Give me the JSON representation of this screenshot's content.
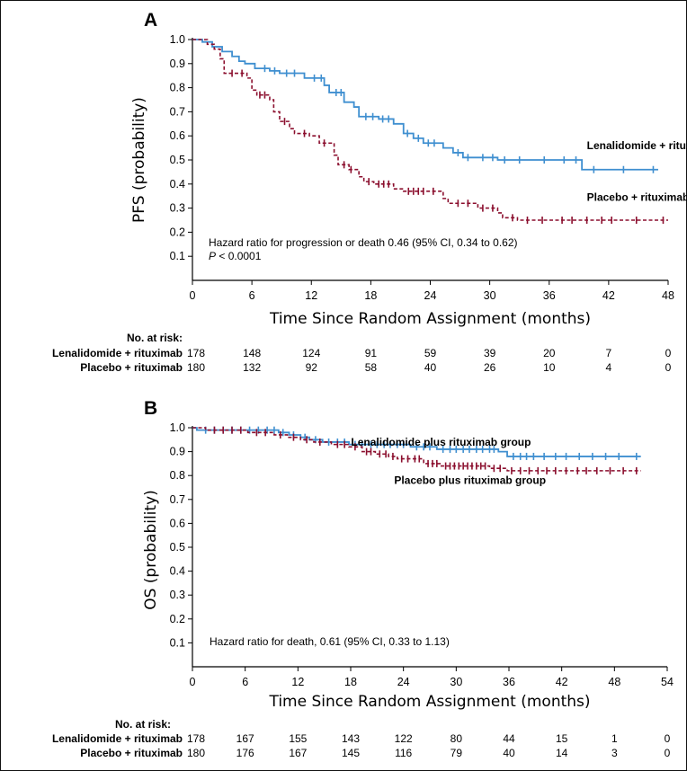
{
  "colors": {
    "lenalidomide": "#3f8fd0",
    "placebo": "#8b0f2e",
    "axis": "#000000"
  },
  "chart_data": [
    {
      "type": "line",
      "id": "panel-a",
      "panel_label": "A",
      "xlabel": "Time Since Random Assignment (months)",
      "ylabel": "PFS (probability)",
      "xlim": [
        0,
        48
      ],
      "ylim": [
        0,
        1.0
      ],
      "x_ticks": [
        0,
        6,
        12,
        18,
        24,
        30,
        36,
        42,
        48
      ],
      "x_tick_labels": [
        "0",
        "6",
        "12",
        "18",
        "24",
        "30",
        "36",
        "42",
        "48"
      ],
      "y_ticks": [
        0.1,
        0.2,
        0.3,
        0.4,
        0.5,
        0.6,
        0.7,
        0.8,
        0.9,
        1.0
      ],
      "y_tick_labels": [
        "0.1",
        "0.2",
        "0.3",
        "0.4",
        "0.5",
        "0.6",
        "0.7",
        "0.8",
        "0.9",
        "1.0"
      ],
      "grid": false,
      "annotation": {
        "line1": "Hazard ratio for progression or death 0.46 (95% CI, 0.34 to 0.62)",
        "line2_p": "P",
        "line2_rest": " < 0.0001"
      },
      "series": [
        {
          "name": "Lenalidomide + rituximab",
          "color_key": "lenalidomide",
          "style": "solid",
          "steps": [
            [
              0,
              1.0
            ],
            [
              1.0,
              0.99
            ],
            [
              2.0,
              0.97
            ],
            [
              3.0,
              0.95
            ],
            [
              4.0,
              0.93
            ],
            [
              4.7,
              0.91
            ],
            [
              5.3,
              0.9
            ],
            [
              6.3,
              0.88
            ],
            [
              7.8,
              0.87
            ],
            [
              8.8,
              0.86
            ],
            [
              11.3,
              0.84
            ],
            [
              13.3,
              0.81
            ],
            [
              13.8,
              0.78
            ],
            [
              15.3,
              0.74
            ],
            [
              16.3,
              0.72
            ],
            [
              16.8,
              0.68
            ],
            [
              18.8,
              0.67
            ],
            [
              20.3,
              0.65
            ],
            [
              21.3,
              0.61
            ],
            [
              22.3,
              0.59
            ],
            [
              23.3,
              0.57
            ],
            [
              25.3,
              0.55
            ],
            [
              26.3,
              0.53
            ],
            [
              27.3,
              0.51
            ],
            [
              30.8,
              0.5
            ],
            [
              39.3,
              0.46
            ],
            [
              47.0,
              0.46
            ]
          ],
          "censor": [
            7.3,
            8.3,
            9.5,
            10.3,
            12.3,
            13.0,
            14.5,
            15.0,
            17.5,
            18.2,
            19.2,
            19.8,
            21.7,
            22.8,
            23.8,
            24.4,
            26.8,
            27.8,
            29.3,
            30.3,
            31.5,
            33.0,
            35.5,
            37.5,
            38.7,
            40.5,
            43.5,
            46.5
          ]
        },
        {
          "name": "Placebo + rituximab",
          "color_key": "placebo",
          "style": "dashed",
          "steps": [
            [
              0,
              1.0
            ],
            [
              1.5,
              0.98
            ],
            [
              2.2,
              0.96
            ],
            [
              2.8,
              0.92
            ],
            [
              3.2,
              0.86
            ],
            [
              5.5,
              0.84
            ],
            [
              6.0,
              0.79
            ],
            [
              6.5,
              0.77
            ],
            [
              7.8,
              0.75
            ],
            [
              8.2,
              0.7
            ],
            [
              8.8,
              0.66
            ],
            [
              9.8,
              0.63
            ],
            [
              10.3,
              0.61
            ],
            [
              11.8,
              0.6
            ],
            [
              12.8,
              0.57
            ],
            [
              14.3,
              0.52
            ],
            [
              14.7,
              0.48
            ],
            [
              15.8,
              0.46
            ],
            [
              16.8,
              0.43
            ],
            [
              17.3,
              0.41
            ],
            [
              18.3,
              0.4
            ],
            [
              20.3,
              0.38
            ],
            [
              21.3,
              0.37
            ],
            [
              25.3,
              0.34
            ],
            [
              25.8,
              0.32
            ],
            [
              28.8,
              0.3
            ],
            [
              30.8,
              0.28
            ],
            [
              31.3,
              0.26
            ],
            [
              32.8,
              0.25
            ],
            [
              48.0,
              0.25
            ]
          ],
          "censor": [
            4.0,
            5.0,
            6.8,
            7.3,
            9.3,
            11.3,
            13.3,
            15.3,
            16.0,
            17.8,
            18.8,
            19.3,
            19.8,
            21.8,
            22.3,
            22.8,
            23.3,
            24.3,
            26.8,
            27.8,
            29.3,
            30.3,
            32.3,
            33.8,
            35.3,
            37.3,
            38.3,
            39.8,
            41.3,
            42.3,
            44.8,
            47.5
          ]
        }
      ],
      "series_labels": [
        {
          "text": "Lenalidomide + rituximab",
          "anchor_x": 39.8,
          "anchor_y": 0.545
        },
        {
          "text": "Placebo + rituximab",
          "anchor_x": 39.8,
          "anchor_y": 0.33
        }
      ],
      "risk_table": {
        "header": "No. at risk:",
        "rows": [
          {
            "label": "Lenalidomide + rituximab",
            "values": [
              "178",
              "148",
              "124",
              "91",
              "59",
              "39",
              "20",
              "7",
              "0"
            ]
          },
          {
            "label": "Placebo + rituximab",
            "values": [
              "180",
              "132",
              "92",
              "58",
              "40",
              "26",
              "10",
              "4",
              "0"
            ]
          }
        ]
      }
    },
    {
      "type": "line",
      "id": "panel-b",
      "panel_label": "B",
      "xlabel": "Time Since Random Assignment (months)",
      "ylabel": "OS (probability)",
      "xlim": [
        0,
        54
      ],
      "ylim": [
        0,
        1.0
      ],
      "x_ticks": [
        0,
        6,
        12,
        18,
        24,
        30,
        36,
        42,
        48,
        54
      ],
      "x_tick_labels": [
        "0",
        "6",
        "12",
        "18",
        "24",
        "30",
        "36",
        "42",
        "48",
        "54"
      ],
      "y_ticks": [
        0.1,
        0.2,
        0.3,
        0.4,
        0.5,
        0.6,
        0.7,
        0.8,
        0.9,
        1.0
      ],
      "y_tick_labels": [
        "0.1",
        "0.2",
        "0.3",
        "0.4",
        "0.5",
        "0.6",
        "0.7",
        "0.8",
        "0.9",
        "1.0"
      ],
      "grid": false,
      "annotation": {
        "line1": "Hazard ratio for death, 0.61 (95% CI, 0.33 to 1.13)"
      },
      "series": [
        {
          "name": "Lenalidomide plus rituximab group",
          "color_key": "lenalidomide",
          "style": "solid",
          "steps": [
            [
              0,
              1.0
            ],
            [
              0.5,
              0.99
            ],
            [
              9.8,
              0.98
            ],
            [
              11.0,
              0.97
            ],
            [
              12.3,
              0.96
            ],
            [
              13.3,
              0.95
            ],
            [
              14.8,
              0.94
            ],
            [
              17.8,
              0.93
            ],
            [
              24.8,
              0.92
            ],
            [
              27.8,
              0.91
            ],
            [
              34.8,
              0.9
            ],
            [
              35.8,
              0.88
            ],
            [
              51.0,
              0.88
            ]
          ],
          "censor": [
            1.5,
            2.5,
            3.5,
            4.5,
            5.5,
            6.5,
            7.5,
            8.5,
            9.3,
            10.3,
            11.5,
            12.8,
            14.0,
            15.5,
            16.5,
            17.3,
            18.5,
            19.3,
            20.3,
            21.0,
            21.8,
            22.5,
            23.3,
            24.0,
            25.5,
            26.3,
            27.0,
            28.5,
            29.3,
            30.0,
            30.8,
            31.5,
            32.3,
            33.0,
            33.8,
            34.3,
            36.5,
            37.3,
            38.0,
            38.8,
            40.0,
            41.3,
            42.5,
            44.0,
            45.5,
            47.0,
            48.5,
            50.5
          ]
        },
        {
          "name": "Placebo plus rituximab group",
          "color_key": "placebo",
          "style": "dashed",
          "steps": [
            [
              0,
              1.0
            ],
            [
              1.5,
              0.99
            ],
            [
              6.3,
              0.98
            ],
            [
              9.3,
              0.97
            ],
            [
              10.8,
              0.96
            ],
            [
              12.3,
              0.95
            ],
            [
              13.8,
              0.94
            ],
            [
              15.8,
              0.93
            ],
            [
              17.8,
              0.92
            ],
            [
              19.3,
              0.9
            ],
            [
              20.8,
              0.89
            ],
            [
              22.3,
              0.88
            ],
            [
              23.3,
              0.87
            ],
            [
              26.3,
              0.85
            ],
            [
              28.3,
              0.84
            ],
            [
              33.8,
              0.83
            ],
            [
              35.8,
              0.82
            ],
            [
              51.0,
              0.82
            ]
          ],
          "censor": [
            2.5,
            3.5,
            4.5,
            5.5,
            7.3,
            8.3,
            10.0,
            11.5,
            13.0,
            14.5,
            16.5,
            17.3,
            18.5,
            19.8,
            20.3,
            21.3,
            22.0,
            22.8,
            23.8,
            24.5,
            25.3,
            25.8,
            26.8,
            27.3,
            27.8,
            28.8,
            29.3,
            29.8,
            30.3,
            30.8,
            31.3,
            31.8,
            32.3,
            32.8,
            33.3,
            34.3,
            35.0,
            36.3,
            37.3,
            38.3,
            39.3,
            40.3,
            41.3,
            42.5,
            43.8,
            44.8,
            46.0,
            47.5,
            49.0,
            50.5
          ]
        }
      ],
      "series_labels": [
        {
          "text": "Lenalidomide plus rituximab group",
          "anchor_x": 38.5,
          "anchor_y": 0.925
        },
        {
          "text": "Placebo plus rituximab group",
          "anchor_x": 40.2,
          "anchor_y": 0.765
        }
      ],
      "risk_table": {
        "header": "No. at risk:",
        "rows": [
          {
            "label": "Lenalidomide + rituximab",
            "values": [
              "178",
              "167",
              "155",
              "143",
              "122",
              "80",
              "44",
              "15",
              "1",
              "0"
            ]
          },
          {
            "label": "Placebo + rituximab",
            "values": [
              "180",
              "176",
              "167",
              "145",
              "116",
              "79",
              "40",
              "14",
              "3",
              "0"
            ]
          }
        ]
      }
    }
  ]
}
